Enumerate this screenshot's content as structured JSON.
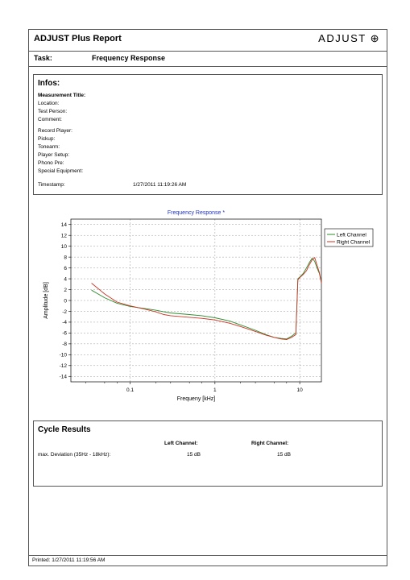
{
  "header": {
    "title": "ADJUST Plus Report",
    "logo": "ADJUST ⊕"
  },
  "task": {
    "label": "Task:",
    "value": "Frequency Response"
  },
  "infos": {
    "heading": "Infos:",
    "fields": [
      "Measurement Title:",
      "Location:",
      "Test Person:",
      "Comment:",
      "Record Player:",
      "Pickup:",
      "Tonearm:",
      "Player Setup:",
      "Phono Pre:",
      "Special Equipment:"
    ],
    "timestamp_label": "Timestamp:",
    "timestamp_value": "1/27/2011 11:19:26 AM"
  },
  "chart_data": {
    "type": "line",
    "title": "Frequency Response *",
    "xlabel": "Frequeny [kHz]",
    "ylabel": "Amplitude [dB]",
    "xscale": "log",
    "xlim": [
      0.02,
      18
    ],
    "ylim": [
      -15,
      15
    ],
    "xticks": [
      "0.1",
      "1",
      "10"
    ],
    "yticks": [
      "14",
      "12",
      "10",
      "8",
      "6",
      "4",
      "2",
      "0",
      "-2",
      "-4",
      "-6",
      "-8",
      "-10",
      "-12",
      "-14"
    ],
    "legend": "top-right",
    "series": [
      {
        "name": "Left Channel",
        "color": "#2e8b2e",
        "x": [
          0.035,
          0.05,
          0.07,
          0.1,
          0.15,
          0.2,
          0.25,
          0.3,
          0.5,
          0.7,
          1,
          1.5,
          2,
          3,
          4,
          5,
          6,
          7,
          8,
          9,
          9.5,
          10,
          11,
          12,
          13,
          14,
          15,
          16,
          17,
          18
        ],
        "y": [
          1.9,
          0.5,
          -0.5,
          -1.1,
          -1.5,
          -1.8,
          -2.1,
          -2.3,
          -2.6,
          -2.8,
          -3.2,
          -3.8,
          -4.5,
          -5.5,
          -6.3,
          -6.8,
          -7.0,
          -7.1,
          -6.6,
          -6.0,
          4.0,
          4.3,
          5.0,
          6.0,
          7.0,
          7.8,
          7.2,
          6.0,
          5.0,
          3.5
        ]
      },
      {
        "name": "Right Channel",
        "color": "#cc3322",
        "x": [
          0.035,
          0.05,
          0.07,
          0.1,
          0.15,
          0.2,
          0.25,
          0.3,
          0.5,
          0.7,
          1,
          1.5,
          2,
          3,
          4,
          5,
          6,
          7,
          8,
          9,
          9.5,
          10,
          11,
          12,
          13,
          14,
          15,
          16,
          17,
          18
        ],
        "y": [
          3.2,
          1.2,
          -0.3,
          -1.0,
          -1.6,
          -2.1,
          -2.6,
          -2.8,
          -3.1,
          -3.3,
          -3.6,
          -4.2,
          -4.8,
          -5.7,
          -6.4,
          -6.8,
          -7.1,
          -7.2,
          -6.8,
          -6.3,
          3.8,
          4.2,
          4.8,
          5.5,
          6.6,
          7.5,
          7.9,
          6.5,
          5.2,
          3.2
        ]
      }
    ]
  },
  "cycle": {
    "heading": "Cycle Results",
    "left_header": "Left Channel:",
    "right_header": "Right Channel:",
    "row_label": "max. Deviation (35Hz - 18kHz):",
    "left_value": "15  dB",
    "right_value": "15  dB"
  },
  "footer": {
    "printed": "Printed: 1/27/2011 11:19:56 AM"
  }
}
